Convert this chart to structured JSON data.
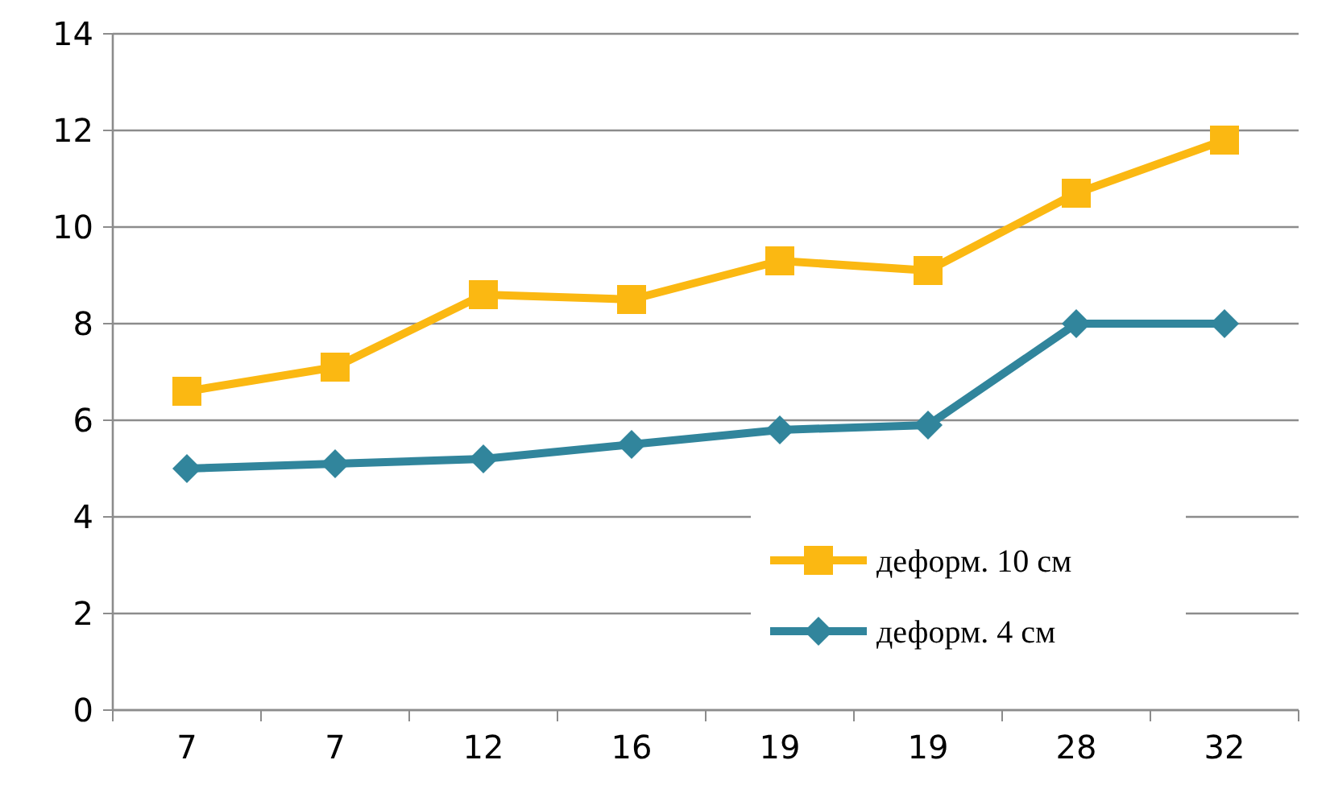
{
  "chart_data": {
    "type": "line",
    "categories": [
      "7",
      "7",
      "12",
      "16",
      "19",
      "19",
      "28",
      "32"
    ],
    "series": [
      {
        "name": "деформ. 10 см",
        "color": "#fbb812",
        "marker": "square",
        "values": [
          6.6,
          7.1,
          8.6,
          8.5,
          9.3,
          9.1,
          10.7,
          11.8
        ]
      },
      {
        "name": "деформ. 4 см",
        "color": "#31859c",
        "marker": "diamond",
        "values": [
          5.0,
          5.1,
          5.2,
          5.5,
          5.8,
          5.9,
          8.0,
          8.0
        ]
      }
    ],
    "ylim": [
      0,
      14
    ],
    "yticks": [
      0,
      2,
      4,
      6,
      8,
      10,
      12,
      14
    ],
    "grid": "y",
    "legend": "bottom right",
    "line_style": "solid"
  }
}
